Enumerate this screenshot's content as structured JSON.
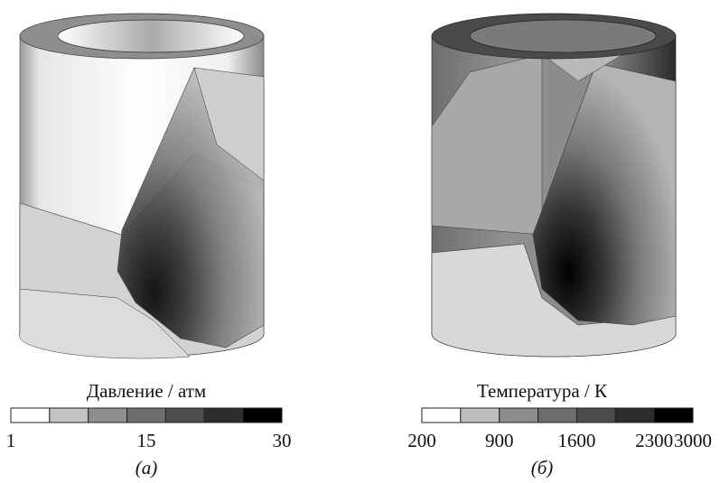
{
  "panels": [
    {
      "legend_title": "Давление / атм",
      "colorbar_colors": [
        "#ffffff",
        "#c2c2c2",
        "#8e8e8e",
        "#6e6e6e",
        "#4e4e4e",
        "#2e2e2e",
        "#000000"
      ],
      "tick_labels": [
        "1",
        "15",
        "30"
      ],
      "caption": "(а)"
    },
    {
      "legend_title": "Температура / К",
      "colorbar_colors": [
        "#ffffff",
        "#bdbdbd",
        "#8c8c8c",
        "#6c6c6c",
        "#4c4c4c",
        "#2c2c2c",
        "#000000"
      ],
      "tick_labels": [
        "200",
        "900",
        "1600",
        "2300",
        "3000"
      ],
      "caption": "(б)"
    }
  ]
}
